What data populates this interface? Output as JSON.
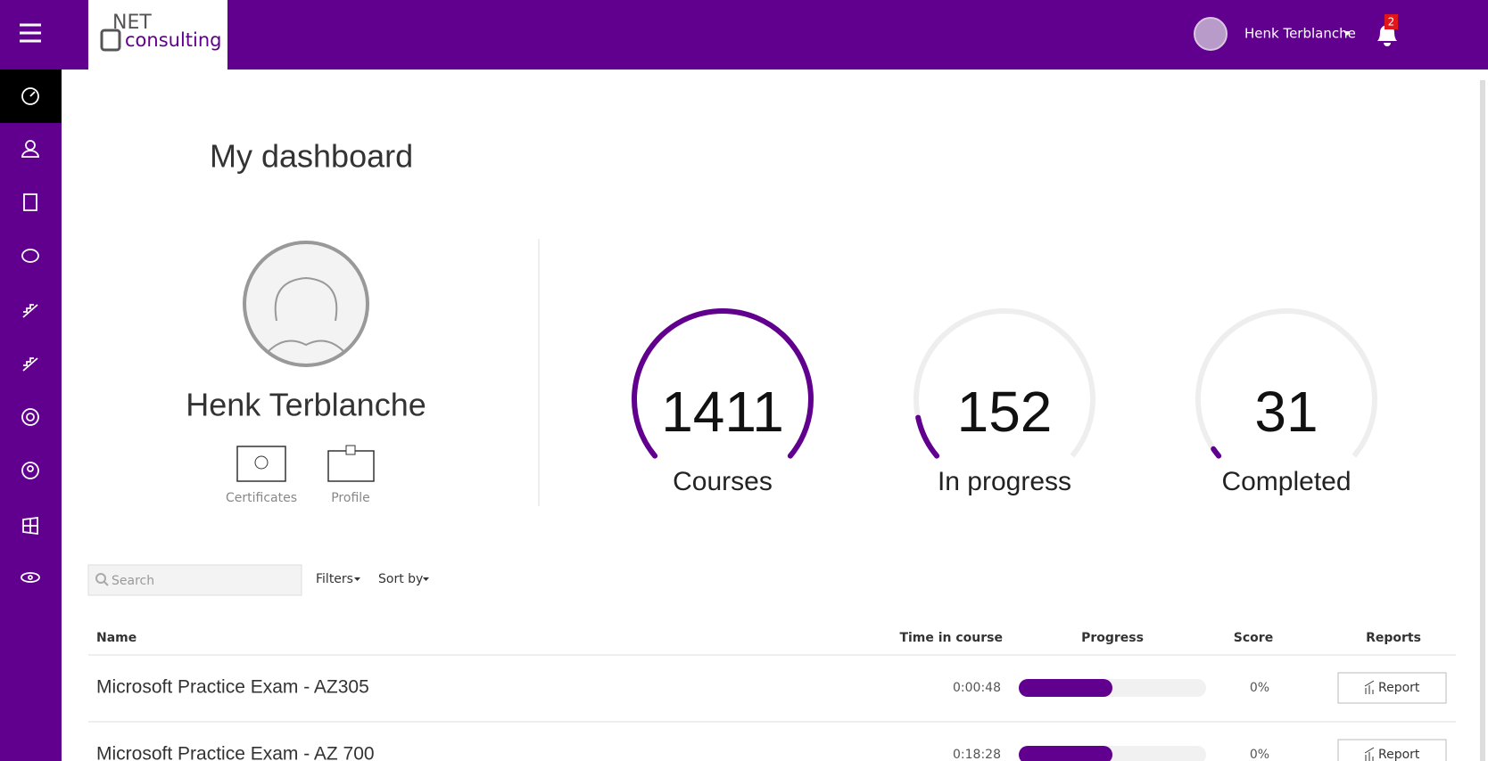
{
  "header": {
    "logo_top": "NET",
    "logo_bottom": "consulting",
    "user_name": "Henk Terblanche",
    "notification_count": "2"
  },
  "dashboard": {
    "title": "My dashboard",
    "profile_name": "Henk Terblanche",
    "links": [
      "Certificates",
      "Profile"
    ]
  },
  "stats": [
    {
      "value": 1411,
      "label": "Courses"
    },
    {
      "value": 152,
      "label": "In progress"
    },
    {
      "value": 31,
      "label": "Completed"
    }
  ],
  "toolbar": {
    "search_placeholder": "Search",
    "filters": "Filters",
    "sort": "Sort by"
  },
  "table": {
    "columns": [
      "Name",
      "Time in course",
      "Progress",
      "Score",
      "Reports"
    ],
    "rows": [
      {
        "name": "Microsoft Practice Exam - AZ305",
        "time": "0:00:48",
        "progress": 50,
        "score": "0%",
        "report": "Report"
      },
      {
        "name": "Microsoft Practice Exam - AZ 700",
        "time": "0:18:28",
        "progress": 50,
        "score": "0%",
        "report": "Report"
      }
    ]
  }
}
